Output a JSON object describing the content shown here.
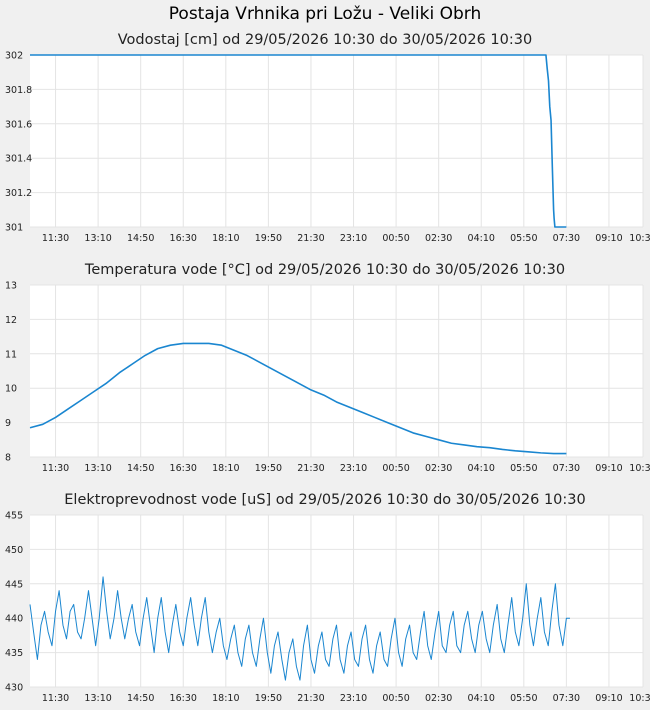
{
  "page": {
    "title": "Postaja Vrhnika pri Ložu - Veliki Obrh"
  },
  "colors": {
    "series": "#1a86d0",
    "grid": "#e4e4e4",
    "plot_bg": "#ffffff",
    "page_bg": "#f0f0f0"
  },
  "chart_data": [
    {
      "type": "line",
      "title": "Vodostaj [cm] od 29/05/2026 10:30 do 30/05/2026 10:30",
      "xlabel": "",
      "ylabel": "",
      "x_tick_labels": [
        "11:30",
        "13:10",
        "14:50",
        "16:30",
        "18:10",
        "19:50",
        "21:30",
        "23:10",
        "00:50",
        "02:30",
        "04:10",
        "05:50",
        "07:30",
        "09:10",
        "10:30"
      ],
      "y_tick_labels": [
        "301",
        "301.2",
        "301.4",
        "301.6",
        "301.8",
        "302"
      ],
      "ylim": [
        301,
        302
      ],
      "x_unit": "hours since 29/05/2026 10:30",
      "xlim": [
        0,
        24
      ],
      "grid": true,
      "series": [
        {
          "points": [
            [
              0,
              302
            ],
            [
              20.2,
              302
            ],
            [
              20.25,
              301.92
            ],
            [
              20.3,
              301.85
            ],
            [
              20.35,
              301.7
            ],
            [
              20.4,
              301.62
            ],
            [
              20.45,
              301.35
            ],
            [
              20.5,
              301.1
            ],
            [
              20.52,
              301.05
            ],
            [
              20.55,
              301
            ],
            [
              21,
              301
            ]
          ]
        }
      ]
    },
    {
      "type": "line",
      "title": "Temperatura vode [°C] od 29/05/2026 10:30 do 30/05/2026 10:30",
      "xlabel": "",
      "ylabel": "",
      "x_tick_labels": [
        "11:30",
        "13:10",
        "14:50",
        "16:30",
        "18:10",
        "19:50",
        "21:30",
        "23:10",
        "00:50",
        "02:30",
        "04:10",
        "05:50",
        "07:30",
        "09:10",
        "10:30"
      ],
      "y_tick_labels": [
        "8",
        "9",
        "10",
        "11",
        "12",
        "13"
      ],
      "ylim": [
        8,
        13
      ],
      "x_unit": "hours since 29/05/2026 10:30",
      "xlim": [
        0,
        24
      ],
      "grid": true,
      "series": [
        {
          "points": [
            [
              0,
              8.85
            ],
            [
              0.5,
              8.95
            ],
            [
              1,
              9.15
            ],
            [
              1.5,
              9.4
            ],
            [
              2,
              9.65
            ],
            [
              2.5,
              9.9
            ],
            [
              3,
              10.15
            ],
            [
              3.5,
              10.45
            ],
            [
              4,
              10.7
            ],
            [
              4.5,
              10.95
            ],
            [
              5,
              11.15
            ],
            [
              5.5,
              11.25
            ],
            [
              6,
              11.3
            ],
            [
              6.5,
              11.3
            ],
            [
              7,
              11.3
            ],
            [
              7.5,
              11.25
            ],
            [
              8,
              11.1
            ],
            [
              8.5,
              10.95
            ],
            [
              9,
              10.75
            ],
            [
              9.5,
              10.55
            ],
            [
              10,
              10.35
            ],
            [
              10.5,
              10.15
            ],
            [
              11,
              9.95
            ],
            [
              11.5,
              9.8
            ],
            [
              12,
              9.6
            ],
            [
              12.5,
              9.45
            ],
            [
              13,
              9.3
            ],
            [
              13.5,
              9.15
            ],
            [
              14,
              9
            ],
            [
              14.5,
              8.85
            ],
            [
              15,
              8.7
            ],
            [
              15.5,
              8.6
            ],
            [
              16,
              8.5
            ],
            [
              16.5,
              8.4
            ],
            [
              17,
              8.35
            ],
            [
              17.5,
              8.3
            ],
            [
              18,
              8.27
            ],
            [
              18.5,
              8.22
            ],
            [
              19,
              8.18
            ],
            [
              19.5,
              8.15
            ],
            [
              20,
              8.12
            ],
            [
              20.5,
              8.1
            ],
            [
              21,
              8.1
            ]
          ]
        }
      ]
    },
    {
      "type": "line",
      "title": "Elektroprevodnost vode [uS] od 29/05/2026 10:30 do 30/05/2026 10:30",
      "xlabel": "",
      "ylabel": "",
      "x_tick_labels": [
        "11:30",
        "13:10",
        "14:50",
        "16:30",
        "18:10",
        "19:50",
        "21:30",
        "23:10",
        "00:50",
        "02:30",
        "04:10",
        "05:50",
        "07:30",
        "09:10",
        "10:30"
      ],
      "y_tick_labels": [
        "430",
        "435",
        "440",
        "445",
        "450",
        "455"
      ],
      "ylim": [
        430,
        455
      ],
      "x_unit": "hours since 29/05/2026 10:30",
      "xlim": [
        0,
        24
      ],
      "grid": true,
      "series": [
        {
          "points": [
            [
              0.0,
              442
            ],
            [
              0.14,
              438
            ],
            [
              0.29,
              434
            ],
            [
              0.43,
              439
            ],
            [
              0.57,
              441
            ],
            [
              0.71,
              438
            ],
            [
              0.86,
              436
            ],
            [
              1.0,
              441
            ],
            [
              1.14,
              444
            ],
            [
              1.29,
              439
            ],
            [
              1.43,
              437
            ],
            [
              1.57,
              441
            ],
            [
              1.71,
              442
            ],
            [
              1.86,
              438
            ],
            [
              2.0,
              437
            ],
            [
              2.14,
              440
            ],
            [
              2.29,
              444
            ],
            [
              2.43,
              440
            ],
            [
              2.57,
              436
            ],
            [
              2.71,
              440
            ],
            [
              2.86,
              446
            ],
            [
              3.0,
              441
            ],
            [
              3.14,
              437
            ],
            [
              3.29,
              440
            ],
            [
              3.43,
              444
            ],
            [
              3.57,
              440
            ],
            [
              3.71,
              437
            ],
            [
              3.86,
              440
            ],
            [
              4.0,
              442
            ],
            [
              4.14,
              438
            ],
            [
              4.29,
              436
            ],
            [
              4.43,
              440
            ],
            [
              4.57,
              443
            ],
            [
              4.71,
              439
            ],
            [
              4.86,
              435
            ],
            [
              5.0,
              440
            ],
            [
              5.14,
              443
            ],
            [
              5.29,
              438
            ],
            [
              5.43,
              435
            ],
            [
              5.57,
              439
            ],
            [
              5.71,
              442
            ],
            [
              5.86,
              438
            ],
            [
              6.0,
              436
            ],
            [
              6.14,
              440
            ],
            [
              6.29,
              443
            ],
            [
              6.43,
              439
            ],
            [
              6.57,
              436
            ],
            [
              6.71,
              440
            ],
            [
              6.86,
              443
            ],
            [
              7.0,
              438
            ],
            [
              7.14,
              435
            ],
            [
              7.29,
              438
            ],
            [
              7.43,
              440
            ],
            [
              7.57,
              436
            ],
            [
              7.71,
              434
            ],
            [
              7.86,
              437
            ],
            [
              8.0,
              439
            ],
            [
              8.14,
              435
            ],
            [
              8.29,
              433
            ],
            [
              8.43,
              437
            ],
            [
              8.57,
              439
            ],
            [
              8.71,
              435
            ],
            [
              8.86,
              433
            ],
            [
              9.0,
              437
            ],
            [
              9.14,
              440
            ],
            [
              9.29,
              435
            ],
            [
              9.43,
              432
            ],
            [
              9.57,
              436
            ],
            [
              9.71,
              438
            ],
            [
              9.86,
              434
            ],
            [
              10.0,
              431
            ],
            [
              10.14,
              435
            ],
            [
              10.29,
              437
            ],
            [
              10.43,
              433
            ],
            [
              10.57,
              431
            ],
            [
              10.71,
              436
            ],
            [
              10.86,
              439
            ],
            [
              11.0,
              434
            ],
            [
              11.14,
              432
            ],
            [
              11.29,
              436
            ],
            [
              11.43,
              438
            ],
            [
              11.57,
              434
            ],
            [
              11.71,
              433
            ],
            [
              11.86,
              437
            ],
            [
              12.0,
              439
            ],
            [
              12.14,
              434
            ],
            [
              12.29,
              432
            ],
            [
              12.43,
              436
            ],
            [
              12.57,
              438
            ],
            [
              12.71,
              434
            ],
            [
              12.86,
              433
            ],
            [
              13.0,
              437
            ],
            [
              13.14,
              439
            ],
            [
              13.29,
              434
            ],
            [
              13.43,
              432
            ],
            [
              13.57,
              436
            ],
            [
              13.71,
              438
            ],
            [
              13.86,
              434
            ],
            [
              14.0,
              433
            ],
            [
              14.14,
              437
            ],
            [
              14.29,
              440
            ],
            [
              14.43,
              435
            ],
            [
              14.57,
              433
            ],
            [
              14.71,
              437
            ],
            [
              14.86,
              439
            ],
            [
              15.0,
              435
            ],
            [
              15.14,
              434
            ],
            [
              15.29,
              438
            ],
            [
              15.43,
              441
            ],
            [
              15.57,
              436
            ],
            [
              15.71,
              434
            ],
            [
              15.86,
              438
            ],
            [
              16.0,
              441
            ],
            [
              16.14,
              436
            ],
            [
              16.29,
              435
            ],
            [
              16.43,
              439
            ],
            [
              16.57,
              441
            ],
            [
              16.71,
              436
            ],
            [
              16.86,
              435
            ],
            [
              17.0,
              439
            ],
            [
              17.14,
              441
            ],
            [
              17.29,
              437
            ],
            [
              17.43,
              435
            ],
            [
              17.57,
              439
            ],
            [
              17.71,
              441
            ],
            [
              17.86,
              437
            ],
            [
              18.0,
              435
            ],
            [
              18.14,
              439
            ],
            [
              18.29,
              442
            ],
            [
              18.43,
              437
            ],
            [
              18.57,
              435
            ],
            [
              18.71,
              439
            ],
            [
              18.86,
              443
            ],
            [
              19.0,
              438
            ],
            [
              19.14,
              436
            ],
            [
              19.29,
              440
            ],
            [
              19.43,
              445
            ],
            [
              19.57,
              439
            ],
            [
              19.71,
              436
            ],
            [
              19.86,
              440
            ],
            [
              20.0,
              443
            ],
            [
              20.14,
              438
            ],
            [
              20.29,
              436
            ],
            [
              20.43,
              441
            ],
            [
              20.57,
              445
            ],
            [
              20.71,
              439
            ],
            [
              20.86,
              436
            ],
            [
              21.0,
              440
            ],
            [
              21.14,
              440
            ]
          ]
        }
      ]
    }
  ]
}
